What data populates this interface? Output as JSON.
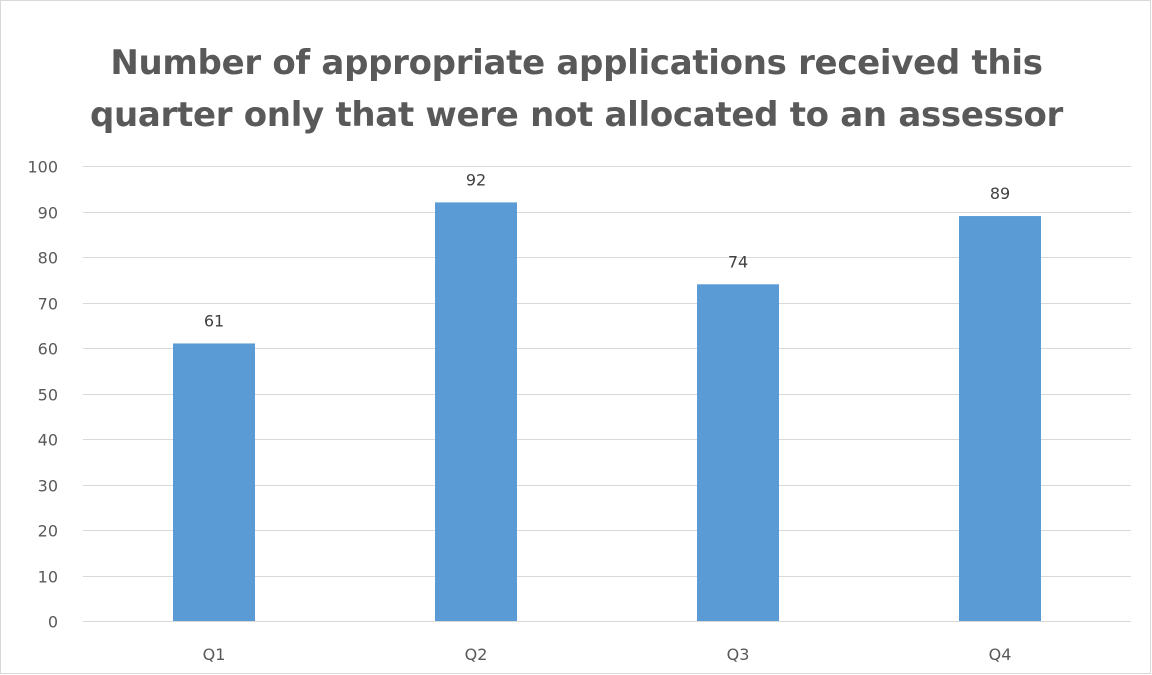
{
  "chart_data": {
    "type": "bar",
    "title_lines": [
      "Number of appropriate applications received this",
      "quarter only that were not allocated to an assessor"
    ],
    "categories": [
      "Q1",
      "Q2",
      "Q3",
      "Q4"
    ],
    "values": [
      61,
      92,
      74,
      89
    ],
    "data_labels": [
      "61",
      "92",
      "74",
      "89"
    ],
    "ylim": [
      0,
      100
    ],
    "yticks": [
      0,
      10,
      20,
      30,
      40,
      50,
      60,
      70,
      80,
      90,
      100
    ],
    "xlabel": "",
    "ylabel": "",
    "grid": true,
    "legend": "none",
    "colors": {
      "bar": "#5b9bd5",
      "grid": "#d9d9d9",
      "text": "#595959",
      "border": "#d9d9d9"
    }
  }
}
